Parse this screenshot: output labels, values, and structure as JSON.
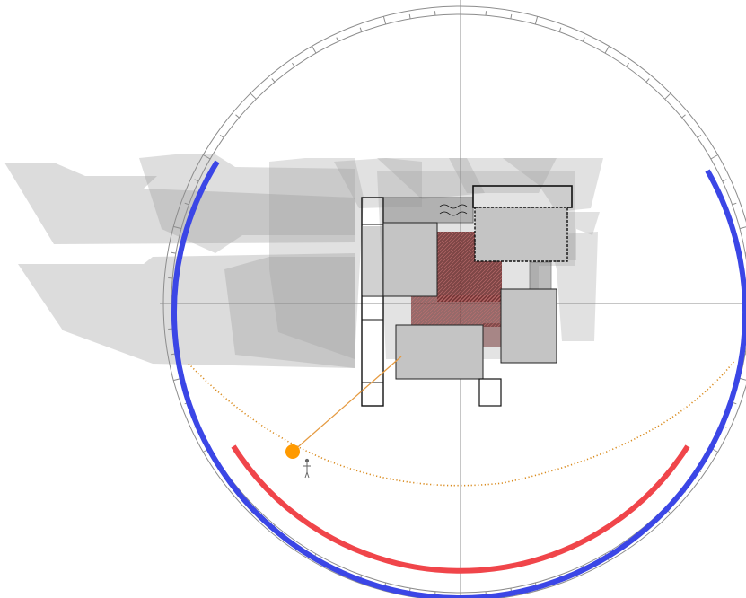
{
  "diagram": {
    "type": "sun-path-shadow-study",
    "colors": {
      "background": "#ffffff",
      "compass_ring": "#8c8c8c",
      "tick": "#8c8c8c",
      "crosshair": "#8c8c8c",
      "shadow": "#9a9a9a",
      "building_roof": "#c4c4c4",
      "building_outline": "#111111",
      "courtyard": "#8a3a3a",
      "sun": "#ff9a00",
      "sun_ray": "#e59a40",
      "sun_path": "#d98a1c",
      "arc_winter": "#3b46e6",
      "arc_summer": "#f0454a"
    },
    "sun": {
      "icon": "sun-icon",
      "path_style": "dotted"
    },
    "observer": {
      "icon": "person-icon"
    },
    "arcs": [
      {
        "name": "",
        "color": "#3b46e6"
      },
      {
        "name": "",
        "color": "#f0454a"
      }
    ]
  }
}
